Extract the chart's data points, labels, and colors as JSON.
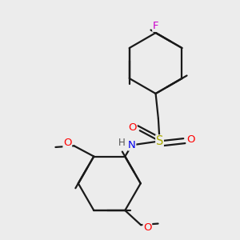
{
  "bg_color": "#ececec",
  "bond_color": "#1a1a1a",
  "bond_width": 1.6,
  "atom_colors": {
    "F": "#cc00cc",
    "O": "#ff0000",
    "N": "#0000ee",
    "S": "#aaaa00",
    "H": "#555555",
    "C": "#1a1a1a"
  },
  "font_size": 8.5,
  "fig_size": [
    3.0,
    3.0
  ],
  "dpi": 100
}
